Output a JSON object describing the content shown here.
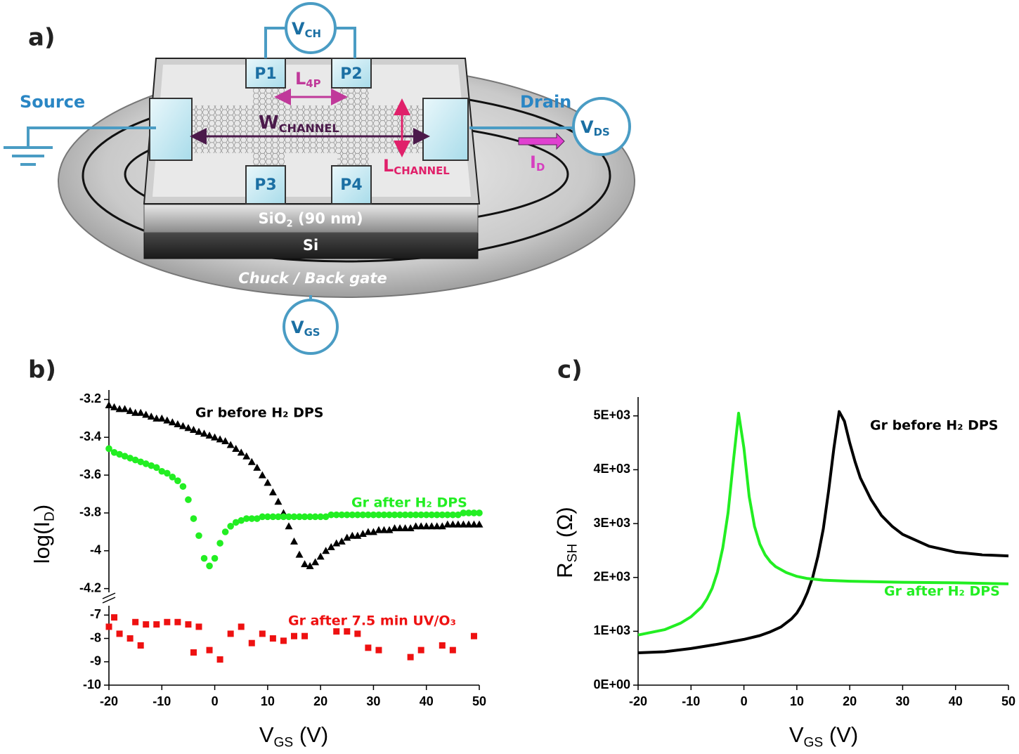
{
  "diagram": {
    "panel": "a)",
    "v_ch": [
      "V",
      "CH"
    ],
    "pads": [
      "P1",
      "P2",
      "P3",
      "P4"
    ],
    "l_4p": [
      "L",
      "4P"
    ],
    "w_channel": [
      "W",
      "CHANNEL"
    ],
    "l_channel": [
      "L",
      "CHANNEL"
    ],
    "source": "Source",
    "drain": "Drain",
    "v_ds": [
      "V",
      "DS"
    ],
    "i_d": [
      "I",
      "D"
    ],
    "sio2": [
      "SiO",
      "2",
      " (90 nm)"
    ],
    "si": "Si",
    "chuck": "Chuck / Back gate",
    "v_gs": [
      "V",
      "GS"
    ]
  },
  "chart_data": [
    {
      "type": "scatter",
      "panel": "b)",
      "ylabel": [
        "log(I",
        "D",
        ")"
      ],
      "x": [
        -20,
        -19,
        -18,
        -17,
        -16,
        -15,
        -14,
        -13,
        -12,
        -11,
        -10,
        -9,
        -8,
        -7,
        -6,
        -5,
        -4,
        -3,
        -2,
        -1,
        0,
        1,
        2,
        3,
        4,
        5,
        6,
        7,
        8,
        9,
        10,
        11,
        12,
        13,
        14,
        15,
        16,
        17,
        18,
        19,
        20,
        21,
        22,
        23,
        24,
        25,
        26,
        27,
        28,
        29,
        30,
        31,
        32,
        33,
        34,
        35,
        36,
        37,
        38,
        39,
        40,
        41,
        42,
        43,
        44,
        45,
        46,
        47,
        48,
        49,
        50
      ],
      "xlim": [
        -20,
        50
      ],
      "ylim": [
        -4.22,
        -3.15
      ],
      "yticks": [
        -3.2,
        -3.4,
        -3.6,
        -3.8,
        -4.0,
        -4.2
      ],
      "series": [
        {
          "name": "Gr before H₂ DPS",
          "color": "#000000",
          "marker": "triangle",
          "values": [
            -3.23,
            -3.24,
            -3.25,
            -3.25,
            -3.26,
            -3.27,
            -3.27,
            -3.28,
            -3.29,
            -3.3,
            -3.3,
            -3.31,
            -3.32,
            -3.33,
            -3.34,
            -3.35,
            -3.36,
            -3.37,
            -3.38,
            -3.39,
            -3.4,
            -3.41,
            -3.42,
            -3.44,
            -3.46,
            -3.48,
            -3.5,
            -3.53,
            -3.56,
            -3.6,
            -3.64,
            -3.69,
            -3.74,
            -3.8,
            -3.87,
            -3.95,
            -4.02,
            -4.07,
            -4.08,
            -4.06,
            -4.03,
            -4.0,
            -3.98,
            -3.96,
            -3.95,
            -3.93,
            -3.92,
            -3.92,
            -3.91,
            -3.9,
            -3.9,
            -3.89,
            -3.89,
            -3.89,
            -3.88,
            -3.88,
            -3.88,
            -3.88,
            -3.87,
            -3.87,
            -3.87,
            -3.87,
            -3.87,
            -3.87,
            -3.86,
            -3.86,
            -3.86,
            -3.86,
            -3.86,
            -3.86,
            -3.86
          ]
        },
        {
          "name": "Gr after H₂ DPS",
          "color": "#22ee22",
          "marker": "circle",
          "values": [
            -3.46,
            -3.48,
            -3.49,
            -3.5,
            -3.51,
            -3.52,
            -3.53,
            -3.54,
            -3.55,
            -3.56,
            -3.58,
            -3.59,
            -3.61,
            -3.63,
            -3.66,
            -3.73,
            -3.83,
            -3.92,
            -4.04,
            -4.08,
            -4.04,
            -3.96,
            -3.9,
            -3.87,
            -3.85,
            -3.84,
            -3.83,
            -3.83,
            -3.83,
            -3.82,
            -3.82,
            -3.82,
            -3.82,
            -3.82,
            -3.82,
            -3.82,
            -3.82,
            -3.82,
            -3.82,
            -3.82,
            -3.82,
            -3.82,
            -3.81,
            -3.81,
            -3.81,
            -3.81,
            -3.81,
            -3.81,
            -3.81,
            -3.81,
            -3.81,
            -3.81,
            -3.81,
            -3.81,
            -3.81,
            -3.81,
            -3.81,
            -3.81,
            -3.81,
            -3.81,
            -3.81,
            -3.81,
            -3.81,
            -3.81,
            -3.81,
            -3.81,
            -3.81,
            -3.8,
            -3.8,
            -3.8,
            -3.8
          ]
        }
      ]
    },
    {
      "type": "scatter",
      "xlabel": [
        "V",
        "GS",
        " (V)"
      ],
      "xlim": [
        -20,
        50
      ],
      "xticks": [
        -20,
        -10,
        0,
        10,
        20,
        30,
        40,
        50
      ],
      "ylim": [
        -10,
        -6.6
      ],
      "yticks": [
        -7,
        -8,
        -9,
        -10
      ],
      "series": [
        {
          "name": "Gr after 7.5 min UV/O₃",
          "color": "#ee1111",
          "marker": "square",
          "x": [
            -20,
            -19,
            -18,
            -16,
            -15,
            -14,
            -13,
            -11,
            -9,
            -7,
            -5,
            -4,
            -3,
            -1,
            1,
            3,
            5,
            7,
            9,
            11,
            13,
            15,
            17,
            23,
            25,
            27,
            29,
            31,
            37,
            39,
            43,
            45,
            49
          ],
          "values": [
            -7.5,
            -7.1,
            -7.8,
            -8.0,
            -7.3,
            -8.3,
            -7.4,
            -7.4,
            -7.3,
            -7.3,
            -7.4,
            -8.6,
            -7.5,
            -8.5,
            -8.9,
            -7.8,
            -7.5,
            -8.2,
            -7.8,
            -8.0,
            -8.1,
            -7.9,
            -7.9,
            -7.7,
            -7.7,
            -7.8,
            -8.4,
            -8.5,
            -8.8,
            -8.5,
            -8.3,
            -8.5,
            -7.9
          ]
        }
      ]
    },
    {
      "type": "line",
      "panel": "c)",
      "ylabel": [
        "R",
        "SH",
        " (Ω)"
      ],
      "xlabel": [
        "V",
        "GS",
        " (V)"
      ],
      "xlim": [
        -20,
        50
      ],
      "xticks": [
        -20,
        -10,
        0,
        10,
        20,
        30,
        40,
        50
      ],
      "ylim": [
        0,
        5350
      ],
      "yticks": [
        {
          "value": 0,
          "label": "0E+00"
        },
        {
          "value": 1000,
          "label": "1E+03"
        },
        {
          "value": 2000,
          "label": "2E+03"
        },
        {
          "value": 3000,
          "label": "3E+03"
        },
        {
          "value": 4000,
          "label": "4E+03"
        },
        {
          "value": 5000,
          "label": "5E+03"
        }
      ],
      "series": [
        {
          "name": "Gr before H₂ DPS",
          "color": "#000000",
          "x": [
            -20,
            -15,
            -10,
            -5,
            0,
            3,
            5,
            7,
            9,
            10,
            11,
            12,
            13,
            14,
            15,
            16,
            17,
            18,
            19,
            20,
            21,
            22,
            24,
            26,
            28,
            30,
            35,
            40,
            45,
            50
          ],
          "values": [
            600,
            620,
            680,
            760,
            850,
            920,
            990,
            1080,
            1230,
            1340,
            1500,
            1720,
            2000,
            2400,
            2900,
            3600,
            4400,
            5080,
            4900,
            4500,
            4150,
            3850,
            3450,
            3150,
            2950,
            2800,
            2580,
            2470,
            2420,
            2400
          ]
        },
        {
          "name": "Gr after H₂ DPS",
          "color": "#22ee22",
          "x": [
            -20,
            -15,
            -12,
            -10,
            -8,
            -7,
            -6,
            -5,
            -4,
            -3,
            -2,
            -1,
            0,
            1,
            2,
            3,
            4,
            5,
            6,
            8,
            10,
            12,
            15,
            20,
            25,
            30,
            40,
            50
          ],
          "values": [
            930,
            1030,
            1150,
            1270,
            1450,
            1600,
            1800,
            2100,
            2550,
            3200,
            4150,
            5050,
            4400,
            3500,
            2950,
            2620,
            2420,
            2290,
            2200,
            2090,
            2020,
            1980,
            1950,
            1930,
            1920,
            1910,
            1900,
            1880
          ]
        }
      ]
    }
  ]
}
